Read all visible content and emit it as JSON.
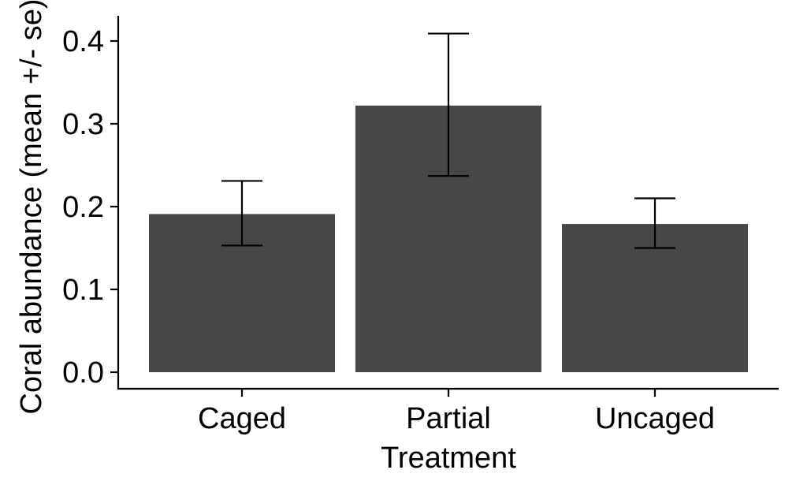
{
  "chart_data": {
    "type": "bar",
    "categories": [
      "Caged",
      "Partial",
      "Uncaged"
    ],
    "values": [
      0.191,
      0.322,
      0.179
    ],
    "error_lower": [
      0.153,
      0.237,
      0.15
    ],
    "error_upper": [
      0.231,
      0.409,
      0.21
    ],
    "xlabel": "Treatment",
    "ylabel": "Coral abundance (mean +/- se)",
    "ylim": [
      0.0,
      0.42
    ],
    "yticks": [
      "0.0",
      "0.1",
      "0.2",
      "0.3",
      "0.4"
    ],
    "ytick_values": [
      0.0,
      0.1,
      0.2,
      0.3,
      0.4
    ],
    "grid": false,
    "legend": "none",
    "bar_color": "#474747",
    "error_bar_color": "#000000",
    "axis_color": "#000000"
  }
}
